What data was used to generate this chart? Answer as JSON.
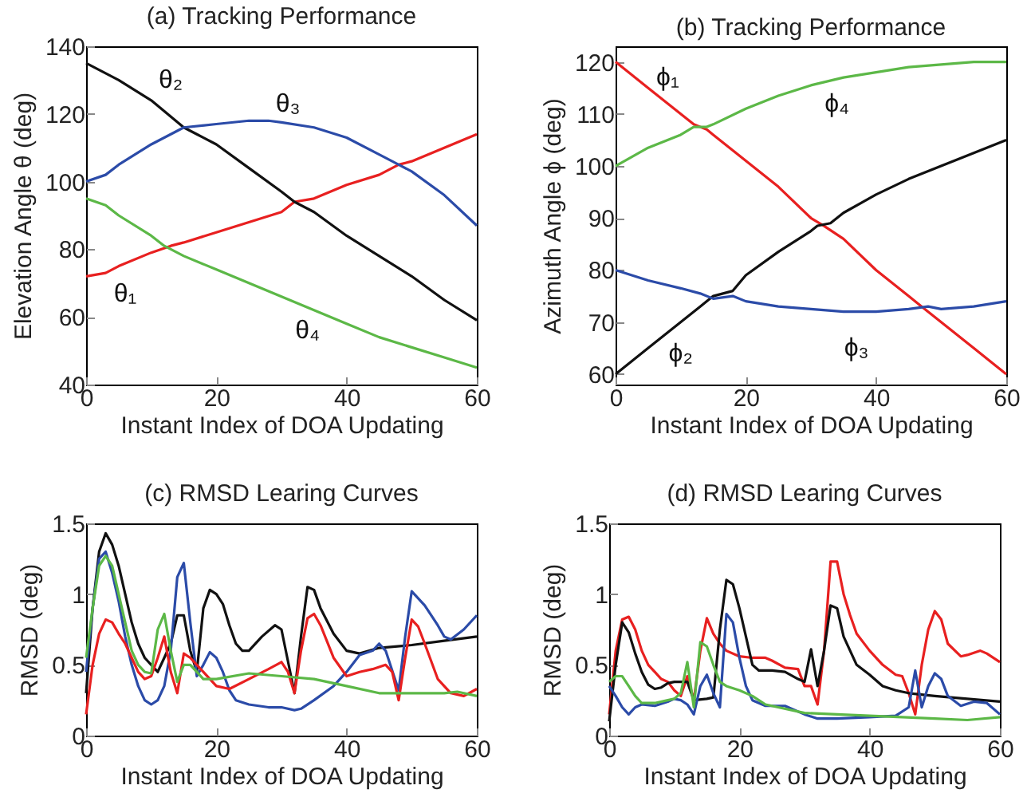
{
  "chart_data": [
    {
      "type": "line",
      "title": "(a) Tracking Performance",
      "xlabel": "Instant Index of DOA Updating",
      "ylabel": "Elevation Angle θ (deg)",
      "xlim": [
        0,
        60
      ],
      "xticks": [
        0,
        20,
        40,
        60
      ],
      "ylim": [
        40,
        140
      ],
      "yticks": [
        40,
        60,
        80,
        100,
        120,
        140
      ],
      "grid": false,
      "legend": false,
      "series": [
        {
          "name": "θ₁",
          "color": "#e82020",
          "x": [
            0,
            3,
            5,
            10,
            13,
            15,
            20,
            25,
            30,
            32,
            35,
            40,
            45,
            48,
            50,
            55,
            60
          ],
          "values": [
            72,
            73,
            75,
            79,
            81,
            82,
            85,
            88,
            91,
            94,
            95,
            99,
            102,
            105,
            106,
            110,
            114
          ]
        },
        {
          "name": "θ₂",
          "color": "#111111",
          "x": [
            0,
            5,
            10,
            15,
            17,
            20,
            25,
            30,
            32,
            35,
            40,
            45,
            50,
            55,
            60
          ],
          "values": [
            135,
            130,
            124,
            116,
            114,
            111,
            104,
            97,
            94,
            91,
            84,
            78,
            72,
            65,
            59
          ]
        },
        {
          "name": "θ₃",
          "color": "#2b4ba8",
          "x": [
            0,
            3,
            5,
            10,
            15,
            20,
            25,
            28,
            30,
            35,
            40,
            45,
            48,
            50,
            55,
            60
          ],
          "values": [
            100,
            102,
            105,
            111,
            116,
            117,
            118,
            118,
            117.5,
            116,
            113,
            108,
            105,
            103,
            96,
            87
          ]
        },
        {
          "name": "θ₄",
          "color": "#5cb847",
          "x": [
            0,
            3,
            5,
            10,
            12,
            15,
            20,
            25,
            30,
            35,
            40,
            45,
            50,
            55,
            60
          ],
          "values": [
            95,
            93,
            90,
            84,
            81,
            78,
            74,
            70,
            66,
            62,
            58,
            54,
            51,
            48,
            45
          ]
        }
      ]
    },
    {
      "type": "line",
      "title": "(b) Tracking Performance",
      "xlabel": "Instant Index of DOA Updating",
      "ylabel": "Azimuth Angle ϕ (deg)",
      "xlim": [
        0,
        60
      ],
      "xticks": [
        0,
        20,
        40,
        60
      ],
      "ylim": [
        58,
        123
      ],
      "yticks": [
        60,
        70,
        80,
        90,
        100,
        110,
        120
      ],
      "grid": false,
      "legend": false,
      "series": [
        {
          "name": "ϕ₁",
          "color": "#e82020",
          "x": [
            0,
            5,
            10,
            12,
            14,
            15,
            20,
            25,
            30,
            32,
            35,
            40,
            45,
            47,
            50,
            55,
            60
          ],
          "values": [
            120,
            115,
            110,
            108,
            107,
            106,
            101,
            96,
            90,
            88.5,
            86,
            80,
            75,
            73,
            70,
            65,
            60
          ]
        },
        {
          "name": "ϕ₂",
          "color": "#111111",
          "x": [
            0,
            5,
            10,
            13,
            15,
            18,
            20,
            25,
            30,
            31,
            33,
            35,
            40,
            45,
            50,
            55,
            60
          ],
          "values": [
            60,
            65,
            70,
            73,
            75,
            76,
            79,
            83.5,
            87.5,
            88.5,
            89,
            91,
            94.5,
            97.5,
            100,
            102.5,
            105
          ]
        },
        {
          "name": "ϕ₃",
          "color": "#2b4ba8",
          "x": [
            0,
            5,
            10,
            13,
            15,
            18,
            20,
            25,
            30,
            35,
            40,
            45,
            48,
            50,
            55,
            60
          ],
          "values": [
            80,
            78,
            76.5,
            75.5,
            74.5,
            75,
            74,
            73,
            72.5,
            72,
            72,
            72.5,
            73,
            72.5,
            73,
            74
          ]
        },
        {
          "name": "ϕ₄",
          "color": "#5cb847",
          "x": [
            0,
            5,
            10,
            12,
            14,
            15,
            20,
            25,
            30,
            35,
            40,
            45,
            50,
            55,
            60
          ],
          "values": [
            100,
            103.5,
            106,
            107.5,
            107.5,
            108,
            111,
            113.5,
            115.5,
            117,
            118,
            119,
            119.5,
            120,
            120
          ]
        }
      ]
    },
    {
      "type": "line",
      "title": "(c) RMSD Learing Curves",
      "xlabel": "Instant Index of DOA Updating",
      "ylabel": "RMSD (deg)",
      "xlim": [
        0,
        60
      ],
      "xticks": [
        0,
        20,
        40,
        60
      ],
      "ylim": [
        0,
        1.5
      ],
      "yticks": [
        0,
        0.5,
        1,
        1.5
      ],
      "grid": false,
      "legend": false,
      "series": [
        {
          "color": "#111111",
          "x": [
            0,
            1,
            2,
            3,
            4,
            5,
            6,
            7,
            8,
            9,
            10,
            11,
            12,
            13,
            14,
            15,
            16,
            17,
            18,
            19,
            20,
            21,
            22,
            23,
            24,
            25,
            27,
            29,
            30,
            32,
            33,
            34,
            35,
            36,
            38,
            40,
            42,
            45,
            50,
            55,
            60
          ],
          "values": [
            0.3,
            0.9,
            1.3,
            1.43,
            1.35,
            1.2,
            1.0,
            0.8,
            0.65,
            0.55,
            0.5,
            0.45,
            0.55,
            0.65,
            0.85,
            0.85,
            0.6,
            0.45,
            0.9,
            1.03,
            1.0,
            0.93,
            0.78,
            0.65,
            0.6,
            0.6,
            0.7,
            0.78,
            0.75,
            0.3,
            0.7,
            1.05,
            1.03,
            0.9,
            0.72,
            0.6,
            0.58,
            0.62,
            0.64,
            0.67,
            0.7
          ]
        },
        {
          "color": "#2b4ba8",
          "x": [
            0,
            1,
            2,
            3,
            4,
            5,
            6,
            7,
            8,
            9,
            10,
            11,
            12,
            13,
            14,
            15,
            16,
            17,
            18,
            19,
            20,
            21,
            22,
            23,
            25,
            28,
            30,
            32,
            33,
            35,
            38,
            40,
            42,
            44,
            45,
            46,
            48,
            49,
            50,
            52,
            54,
            55,
            56,
            58,
            60
          ],
          "values": [
            0.45,
            0.9,
            1.25,
            1.3,
            1.15,
            0.95,
            0.7,
            0.5,
            0.35,
            0.25,
            0.22,
            0.25,
            0.35,
            0.6,
            1.12,
            1.22,
            0.8,
            0.42,
            0.5,
            0.59,
            0.55,
            0.45,
            0.32,
            0.25,
            0.22,
            0.2,
            0.2,
            0.18,
            0.19,
            0.25,
            0.35,
            0.45,
            0.57,
            0.6,
            0.65,
            0.6,
            0.32,
            0.7,
            1.02,
            0.92,
            0.78,
            0.7,
            0.68,
            0.75,
            0.85
          ]
        },
        {
          "color": "#e82020",
          "x": [
            0,
            1,
            2,
            3,
            4,
            5,
            6,
            7,
            8,
            9,
            10,
            11,
            12,
            13,
            14,
            15,
            16,
            17,
            18,
            20,
            22,
            25,
            28,
            30,
            31,
            32,
            33,
            34,
            35,
            36,
            38,
            40,
            42,
            44,
            46,
            47,
            48,
            49,
            50,
            51,
            52,
            54,
            56,
            58,
            60
          ],
          "values": [
            0.15,
            0.5,
            0.72,
            0.82,
            0.8,
            0.72,
            0.65,
            0.55,
            0.45,
            0.4,
            0.42,
            0.55,
            0.7,
            0.45,
            0.3,
            0.58,
            0.55,
            0.5,
            0.45,
            0.35,
            0.33,
            0.4,
            0.47,
            0.52,
            0.45,
            0.3,
            0.6,
            0.83,
            0.86,
            0.78,
            0.55,
            0.42,
            0.45,
            0.47,
            0.5,
            0.45,
            0.25,
            0.55,
            0.82,
            0.77,
            0.65,
            0.4,
            0.3,
            0.28,
            0.33
          ]
        },
        {
          "color": "#5cb847",
          "x": [
            0,
            1,
            2,
            3,
            4,
            5,
            6,
            7,
            8,
            9,
            10,
            11,
            12,
            13,
            14,
            15,
            16,
            17,
            18,
            20,
            25,
            30,
            35,
            40,
            45,
            50,
            55,
            57,
            60
          ],
          "values": [
            0.55,
            0.9,
            1.2,
            1.27,
            1.2,
            1.0,
            0.8,
            0.6,
            0.5,
            0.45,
            0.44,
            0.75,
            0.86,
            0.6,
            0.38,
            0.5,
            0.5,
            0.45,
            0.4,
            0.4,
            0.44,
            0.42,
            0.4,
            0.35,
            0.3,
            0.3,
            0.3,
            0.31,
            0.28
          ]
        }
      ]
    },
    {
      "type": "line",
      "title": "(d) RMSD Learing Curves",
      "xlabel": "Instant Index of DOA Updating",
      "ylabel": "RMSD (deg)",
      "xlim": [
        0,
        60
      ],
      "xticks": [
        0,
        20,
        40,
        60
      ],
      "ylim": [
        0,
        1.5
      ],
      "yticks": [
        0,
        0.5,
        1,
        1.5
      ],
      "grid": false,
      "legend": false,
      "series": [
        {
          "color": "#e82020",
          "x": [
            0,
            1,
            2,
            3,
            4,
            5,
            6,
            7,
            8,
            9,
            10,
            11,
            12,
            13,
            14,
            15,
            16,
            17,
            18,
            20,
            22,
            24,
            25,
            27,
            29,
            30,
            31,
            32,
            33,
            34,
            35,
            36,
            37,
            38,
            40,
            42,
            44,
            45,
            46,
            47,
            48,
            49,
            50,
            51,
            52,
            54,
            55,
            57,
            58,
            60
          ],
          "values": [
            0.15,
            0.6,
            0.82,
            0.84,
            0.75,
            0.6,
            0.5,
            0.45,
            0.4,
            0.38,
            0.32,
            0.28,
            0.42,
            0.25,
            0.6,
            0.83,
            0.72,
            0.65,
            0.6,
            0.56,
            0.55,
            0.55,
            0.53,
            0.48,
            0.47,
            0.35,
            0.35,
            0.22,
            0.6,
            1.23,
            1.23,
            1.0,
            0.85,
            0.72,
            0.6,
            0.5,
            0.43,
            0.42,
            0.3,
            0.15,
            0.5,
            0.75,
            0.88,
            0.82,
            0.65,
            0.56,
            0.57,
            0.6,
            0.58,
            0.52
          ]
        },
        {
          "color": "#111111",
          "x": [
            0,
            1,
            2,
            3,
            4,
            5,
            6,
            7,
            8,
            9,
            10,
            12,
            13,
            15,
            16,
            17,
            18,
            19,
            20,
            21,
            22,
            23,
            25,
            27,
            29,
            30,
            31,
            32,
            33,
            34,
            35,
            36,
            38,
            40,
            42,
            44,
            46,
            50,
            55,
            60
          ],
          "values": [
            0.1,
            0.5,
            0.8,
            0.73,
            0.58,
            0.45,
            0.36,
            0.33,
            0.34,
            0.37,
            0.38,
            0.38,
            0.25,
            0.26,
            0.27,
            0.75,
            1.1,
            1.07,
            0.9,
            0.7,
            0.5,
            0.46,
            0.46,
            0.45,
            0.4,
            0.38,
            0.61,
            0.35,
            0.6,
            0.92,
            0.9,
            0.7,
            0.5,
            0.43,
            0.35,
            0.32,
            0.3,
            0.28,
            0.26,
            0.24
          ]
        },
        {
          "color": "#2b4ba8",
          "x": [
            0,
            1,
            2,
            3,
            4,
            5,
            7,
            9,
            10,
            11,
            12,
            13,
            14,
            15,
            16,
            17,
            18,
            19,
            20,
            21,
            22,
            24,
            27,
            30,
            32,
            35,
            40,
            44,
            46,
            47,
            48,
            49,
            50,
            51,
            52,
            54,
            56,
            58,
            60
          ],
          "values": [
            0.35,
            0.28,
            0.2,
            0.15,
            0.2,
            0.22,
            0.21,
            0.24,
            0.26,
            0.25,
            0.22,
            0.15,
            0.35,
            0.43,
            0.3,
            0.2,
            0.86,
            0.8,
            0.55,
            0.35,
            0.25,
            0.21,
            0.21,
            0.15,
            0.12,
            0.12,
            0.13,
            0.14,
            0.2,
            0.46,
            0.2,
            0.35,
            0.44,
            0.4,
            0.28,
            0.21,
            0.24,
            0.23,
            0.15
          ]
        },
        {
          "color": "#5cb847",
          "x": [
            0,
            1,
            2,
            3,
            4,
            5,
            7,
            9,
            10,
            11,
            12,
            13,
            14,
            15,
            16,
            17,
            18,
            20,
            22,
            24,
            30,
            35,
            40,
            45,
            50,
            55,
            60
          ],
          "values": [
            0.38,
            0.42,
            0.42,
            0.35,
            0.28,
            0.23,
            0.23,
            0.25,
            0.26,
            0.3,
            0.52,
            0.2,
            0.66,
            0.63,
            0.5,
            0.38,
            0.35,
            0.32,
            0.28,
            0.22,
            0.16,
            0.15,
            0.14,
            0.13,
            0.12,
            0.11,
            0.13
          ]
        }
      ]
    }
  ]
}
